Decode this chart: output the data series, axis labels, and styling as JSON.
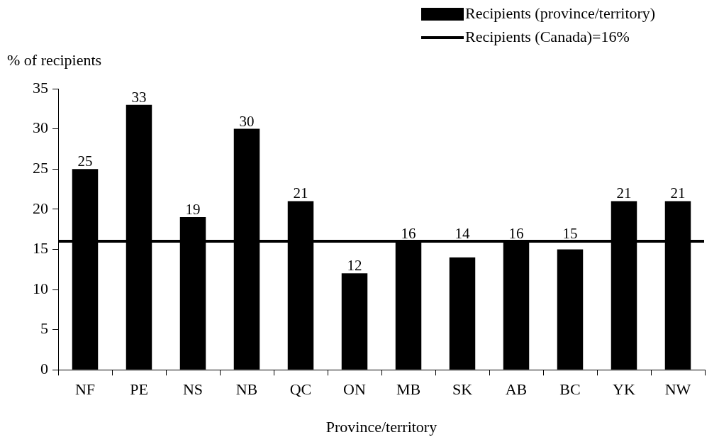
{
  "chart_data": {
    "type": "bar",
    "xlabel": "Province/territory",
    "ylabel": "% of recipients",
    "categories": [
      "NF",
      "PE",
      "NS",
      "NB",
      "QC",
      "ON",
      "MB",
      "SK",
      "AB",
      "BC",
      "YK",
      "NW"
    ],
    "series": [
      {
        "name": "Recipients (province/territory)",
        "color": "#000000",
        "values": [
          25,
          33,
          19,
          30,
          21,
          12,
          16,
          14,
          16,
          15,
          21,
          21
        ],
        "value_labels": [
          "25",
          "33",
          "19",
          "30",
          "21",
          "12",
          "16",
          "14",
          "16",
          "15",
          "21",
          "21"
        ]
      }
    ],
    "ref_lines": [
      {
        "axis": "y",
        "value": 16,
        "label": "Recipients (Canada)=16%",
        "color": "#000000",
        "line_style": "solid"
      }
    ],
    "ylim": [
      0,
      35
    ],
    "yticks": [
      0,
      5,
      10,
      15,
      20,
      25,
      30,
      35
    ],
    "grid": false,
    "legend": "top right"
  }
}
